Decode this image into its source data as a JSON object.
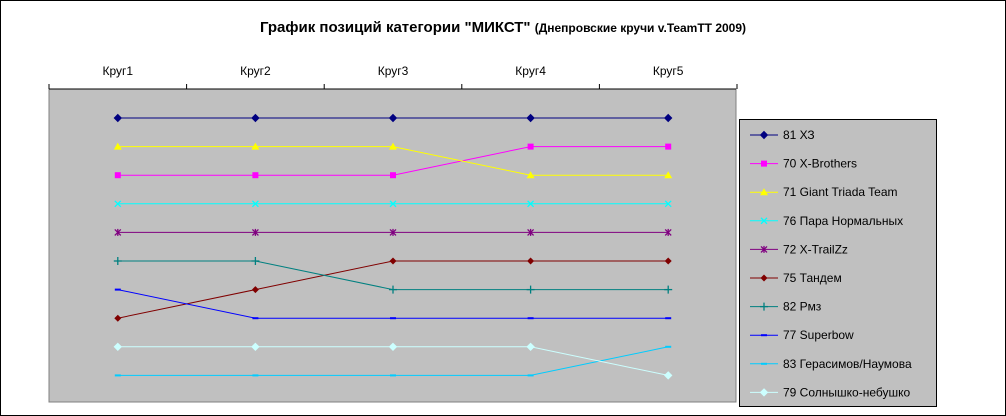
{
  "title": "График позиций категории \"МИКСТ\"",
  "subtitle": "(Днепровские кручи v.TeamTT 2009)",
  "chart_data": {
    "type": "line",
    "title": "График позиций категории \"МИКСТ\" (Днепровские кручи v.TeamTT 2009)",
    "categories": [
      "Круг1",
      "Круг2",
      "Круг3",
      "Круг4",
      "Круг5"
    ],
    "y_reversed": true,
    "ylim": [
      1,
      10
    ],
    "grid": false,
    "plot_background": "#c0c0c0",
    "legend_position": "right",
    "series": [
      {
        "name": "81 ХЗ",
        "color": "#000080",
        "marker": "diamond",
        "values": [
          1,
          1,
          1,
          1,
          1
        ]
      },
      {
        "name": "70 X-Brothers",
        "color": "#ff00ff",
        "marker": "square",
        "values": [
          3,
          3,
          3,
          2,
          2
        ]
      },
      {
        "name": "71 Giant Triada Team",
        "color": "#ffff00",
        "marker": "triangle",
        "values": [
          2,
          2,
          2,
          3,
          3
        ]
      },
      {
        "name": "76 Пара Нормальных",
        "color": "#00ffff",
        "marker": "x",
        "values": [
          4,
          4,
          4,
          4,
          4
        ]
      },
      {
        "name": "72 X-TrailZz",
        "color": "#800080",
        "marker": "star",
        "values": [
          5,
          5,
          5,
          5,
          5
        ]
      },
      {
        "name": "75 Тандем",
        "color": "#800000",
        "marker": "circle",
        "values": [
          8,
          7,
          6,
          6,
          6
        ]
      },
      {
        "name": "82 Рмз",
        "color": "#008080",
        "marker": "plus",
        "values": [
          6,
          6,
          7,
          7,
          7
        ]
      },
      {
        "name": "77 Superbow",
        "color": "#0000ff",
        "marker": "dash",
        "values": [
          7,
          8,
          8,
          8,
          8
        ]
      },
      {
        "name": "83 Герасимов/Наумова",
        "color": "#00ccff",
        "marker": "dash",
        "values": [
          10,
          10,
          10,
          10,
          9
        ]
      },
      {
        "name": "79 Солнышко-небушко",
        "color": "#ccffff",
        "marker": "diamond",
        "values": [
          9,
          9,
          9,
          9,
          10
        ]
      }
    ]
  }
}
